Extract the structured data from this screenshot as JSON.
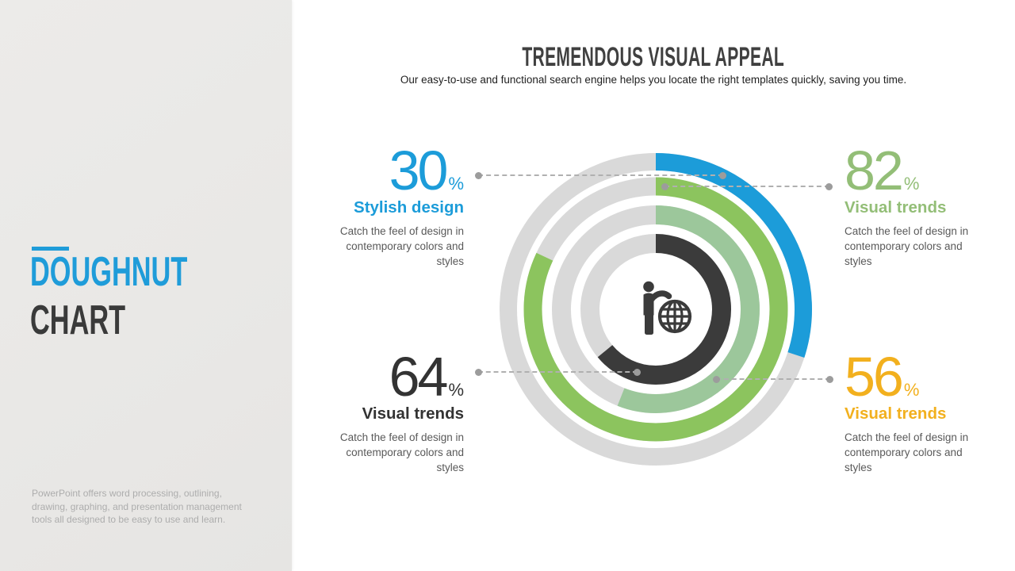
{
  "sidebar": {
    "title_line1": "DOUGHNUT",
    "title_line2": "CHART",
    "footer": "PowerPoint offers word processing, outlining, drawing, graphing, and presentation management tools all designed to be easy to use and learn."
  },
  "header": {
    "title": "TREMENDOUS VISUAL APPEAL",
    "subtitle": "Our easy-to-use and functional search engine helps you locate the right templates quickly, saving you time."
  },
  "colors": {
    "accent_blue": "#1f9cd9",
    "stat_blue": "#1c9cd9",
    "stat_green": "#93be77",
    "stat_dark": "#333333",
    "stat_yellow": "#f2b01e",
    "ring_track": "#d9d9d9",
    "connector_gray": "#9c9c9c",
    "icon_dark": "#3b3b3b"
  },
  "stats": [
    {
      "value": "30",
      "unit": "%",
      "label": "Stylish design",
      "desc": "Catch the feel of design in contemporary colors and styles",
      "color": "#1c9cd9"
    },
    {
      "value": "82",
      "unit": "%",
      "label": "Visual trends",
      "desc": "Catch the feel of design in contemporary colors and styles",
      "color": "#93be77"
    },
    {
      "value": "64",
      "unit": "%",
      "label": "Visual trends",
      "desc": "Catch the feel of design in contemporary colors and styles",
      "color": "#333333"
    },
    {
      "value": "56",
      "unit": "%",
      "label": "Visual trends",
      "desc": "Catch the feel of design in contemporary colors and styles",
      "color": "#f2b01e"
    }
  ],
  "chart_data": {
    "type": "doughnut",
    "title": "TREMENDOUS VISUAL APPEAL",
    "start_angle_deg": 0,
    "direction": "clockwise",
    "track_color": "#d9d9d9",
    "center_icon": "presenter-with-globe",
    "rings": [
      {
        "position": "outer",
        "label": "Stylish design",
        "value": 30,
        "color": "#1c9cd9"
      },
      {
        "position": "second",
        "label": "Visual trends",
        "value": 82,
        "color": "#8cc45e"
      },
      {
        "position": "third",
        "label": "Visual trends",
        "value": 56,
        "color": "#9cc79b"
      },
      {
        "position": "inner",
        "label": "Visual trends",
        "value": 64,
        "color": "#3b3b3b"
      }
    ]
  }
}
